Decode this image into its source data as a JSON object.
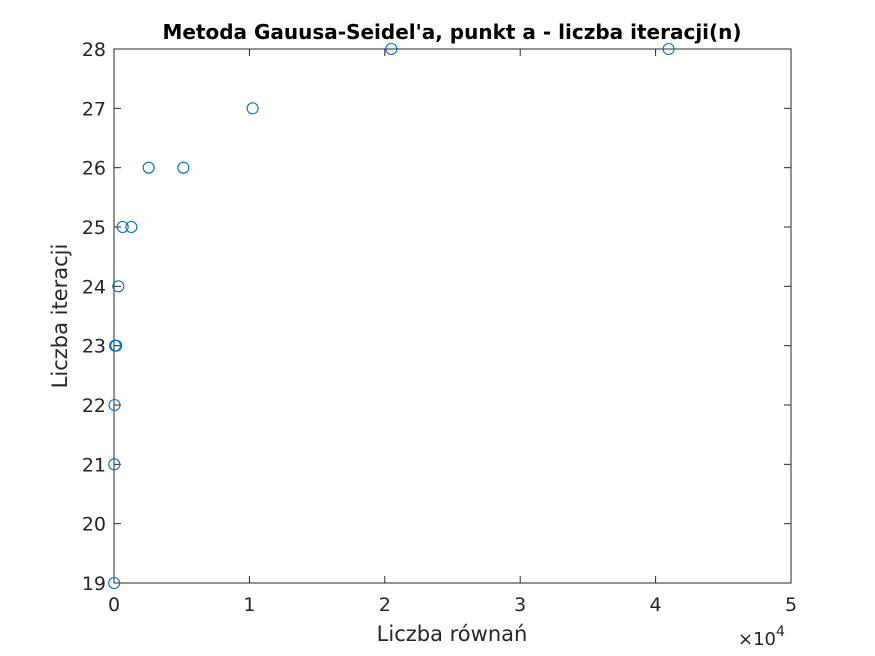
{
  "chart_data": {
    "type": "scatter",
    "title": "Metoda Gauusa-Seidel'a, punkt a - liczba iteracji(n)",
    "xlabel": "Liczba równań",
    "ylabel": "Liczba iteracji",
    "x_exponent_base": "×10",
    "x_exponent_power": "4",
    "xlim": [
      0,
      50000
    ],
    "ylim": [
      19,
      28
    ],
    "x_ticks": [
      0,
      10000,
      20000,
      30000,
      40000,
      50000
    ],
    "x_tick_labels": [
      "0",
      "1",
      "2",
      "3",
      "4",
      "5"
    ],
    "y_ticks": [
      19,
      20,
      21,
      22,
      23,
      24,
      25,
      26,
      27,
      28
    ],
    "y_tick_labels": [
      "19",
      "20",
      "21",
      "22",
      "23",
      "24",
      "25",
      "26",
      "27",
      "28"
    ],
    "marker": "circle-open",
    "marker_color": "#0072BD",
    "grid": false,
    "series": [
      {
        "x": [
          10,
          20,
          40,
          80,
          160,
          320,
          640,
          1280,
          2560,
          5120,
          10240,
          20480,
          40960
        ],
        "y": [
          19,
          21,
          22,
          23,
          23,
          24,
          25,
          25,
          26,
          26,
          27,
          28,
          28
        ]
      }
    ]
  }
}
